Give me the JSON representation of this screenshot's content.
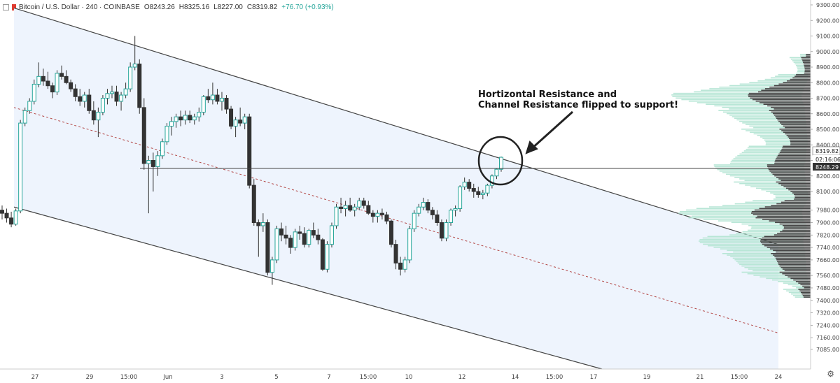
{
  "header": {
    "symbol": "Bitcoin / U.S. Dollar · 240 · COINBASE",
    "open": "O8243.26",
    "high": "H8325.16",
    "low": "L8227.00",
    "close": "C8319.82",
    "change": "+76.70 (+0.93%)"
  },
  "annotation": {
    "line1": "Hortizontal Resistance and",
    "line2": "Channel Resistance flipped to support!"
  },
  "price_labels": {
    "last": "8319.82",
    "countdown": "02:16:06",
    "level": "8248.29"
  },
  "colors": {
    "up": "#26a69a",
    "down": "#333333",
    "channel_fill": "#eef4fd",
    "midline": "#b34747",
    "volume_profile_bright": "#b8e6d6",
    "volume_profile_dark": "#444444"
  },
  "chart_data": {
    "type": "candlestick",
    "title": "",
    "y_ticks": [
      9300,
      9200,
      9100,
      9000,
      8900,
      8800,
      8700,
      8600,
      8500,
      8400,
      8300,
      8200,
      8100,
      7980,
      7900,
      7820,
      7740,
      7660,
      7560,
      7480,
      7400,
      7320,
      7240,
      7160,
      7085
    ],
    "x_ticks": [
      "27",
      "29",
      "15:00",
      "Jun",
      "3",
      "5",
      "7",
      "15:00",
      "10",
      "12",
      "14",
      "15:00",
      "17",
      "19",
      "21",
      "15:00",
      "24"
    ],
    "candles": [
      [
        7980,
        8010,
        7920,
        7960
      ],
      [
        7960,
        7990,
        7900,
        7930
      ],
      [
        7930,
        7970,
        7870,
        7890
      ],
      [
        7890,
        7990,
        7880,
        7975
      ],
      [
        7975,
        8560,
        7960,
        8540
      ],
      [
        8540,
        8640,
        8520,
        8620
      ],
      [
        8620,
        8700,
        8600,
        8680
      ],
      [
        8680,
        8820,
        8660,
        8790
      ],
      [
        8790,
        8930,
        8770,
        8840
      ],
      [
        8840,
        8890,
        8780,
        8810
      ],
      [
        8810,
        8870,
        8760,
        8780
      ],
      [
        8780,
        8800,
        8700,
        8740
      ],
      [
        8740,
        8880,
        8720,
        8860
      ],
      [
        8860,
        8910,
        8820,
        8840
      ],
      [
        8840,
        8880,
        8790,
        8800
      ],
      [
        8800,
        8820,
        8740,
        8760
      ],
      [
        8760,
        8790,
        8680,
        8710
      ],
      [
        8710,
        8760,
        8650,
        8680
      ],
      [
        8680,
        8740,
        8640,
        8720
      ],
      [
        8720,
        8760,
        8600,
        8620
      ],
      [
        8620,
        8680,
        8530,
        8560
      ],
      [
        8560,
        8640,
        8450,
        8610
      ],
      [
        8610,
        8720,
        8590,
        8700
      ],
      [
        8700,
        8760,
        8660,
        8730
      ],
      [
        8730,
        8780,
        8700,
        8740
      ],
      [
        8740,
        8780,
        8650,
        8680
      ],
      [
        8680,
        8740,
        8620,
        8720
      ],
      [
        8720,
        8800,
        8700,
        8760
      ],
      [
        8760,
        8930,
        8740,
        8900
      ],
      [
        8900,
        9100,
        8880,
        8920
      ],
      [
        8920,
        8950,
        8600,
        8640
      ],
      [
        8640,
        8700,
        8240,
        8280
      ],
      [
        8280,
        8330,
        7960,
        8300
      ],
      [
        8300,
        8350,
        8100,
        8260
      ],
      [
        8260,
        8360,
        8200,
        8330
      ],
      [
        8330,
        8440,
        8310,
        8420
      ],
      [
        8420,
        8540,
        8400,
        8520
      ],
      [
        8520,
        8580,
        8460,
        8550
      ],
      [
        8550,
        8600,
        8510,
        8580
      ],
      [
        8580,
        8620,
        8520,
        8560
      ],
      [
        8560,
        8620,
        8530,
        8590
      ],
      [
        8590,
        8620,
        8540,
        8560
      ],
      [
        8560,
        8600,
        8530,
        8580
      ],
      [
        8580,
        8640,
        8550,
        8610
      ],
      [
        8610,
        8720,
        8590,
        8710
      ],
      [
        8710,
        8760,
        8670,
        8690
      ],
      [
        8690,
        8800,
        8660,
        8720
      ],
      [
        8720,
        8760,
        8660,
        8680
      ],
      [
        8680,
        8740,
        8620,
        8700
      ],
      [
        8700,
        8720,
        8600,
        8630
      ],
      [
        8630,
        8650,
        8500,
        8520
      ],
      [
        8520,
        8580,
        8450,
        8560
      ],
      [
        8560,
        8640,
        8520,
        8540
      ],
      [
        8540,
        8600,
        8500,
        8580
      ],
      [
        8580,
        8600,
        8120,
        8140
      ],
      [
        8140,
        8180,
        7880,
        7900
      ],
      [
        7900,
        7920,
        7680,
        7880
      ],
      [
        7880,
        7960,
        7840,
        7900
      ],
      [
        7900,
        7920,
        7560,
        7580
      ],
      [
        7580,
        7680,
        7500,
        7660
      ],
      [
        7660,
        7880,
        7640,
        7860
      ],
      [
        7860,
        7900,
        7780,
        7820
      ],
      [
        7820,
        7880,
        7760,
        7800
      ],
      [
        7800,
        7820,
        7700,
        7740
      ],
      [
        7740,
        7860,
        7720,
        7840
      ],
      [
        7840,
        7880,
        7790,
        7830
      ],
      [
        7830,
        7870,
        7740,
        7760
      ],
      [
        7760,
        7860,
        7740,
        7850
      ],
      [
        7850,
        7900,
        7800,
        7820
      ],
      [
        7820,
        7860,
        7760,
        7790
      ],
      [
        7790,
        7800,
        7590,
        7600
      ],
      [
        7600,
        7780,
        7580,
        7760
      ],
      [
        7760,
        7900,
        7740,
        7880
      ],
      [
        7880,
        8020,
        7860,
        8000
      ],
      [
        8000,
        8060,
        7960,
        7990
      ],
      [
        7990,
        8040,
        7940,
        8010
      ],
      [
        8010,
        8060,
        7970,
        7980
      ],
      [
        7980,
        8020,
        7940,
        8000
      ],
      [
        8000,
        8060,
        7980,
        8040
      ],
      [
        8040,
        8060,
        7990,
        8010
      ],
      [
        8010,
        8040,
        7950,
        7960
      ],
      [
        7960,
        7980,
        7900,
        7940
      ],
      [
        7940,
        7980,
        7900,
        7960
      ],
      [
        7960,
        7990,
        7920,
        7950
      ],
      [
        7950,
        7970,
        7890,
        7910
      ],
      [
        7910,
        7920,
        7740,
        7760
      ],
      [
        7760,
        7790,
        7600,
        7640
      ],
      [
        7640,
        7680,
        7560,
        7600
      ],
      [
        7600,
        7680,
        7580,
        7660
      ],
      [
        7660,
        7880,
        7640,
        7860
      ],
      [
        7860,
        7980,
        7840,
        7960
      ],
      [
        7960,
        8020,
        7940,
        8000
      ],
      [
        8000,
        8060,
        7980,
        8030
      ],
      [
        8030,
        8050,
        7960,
        7980
      ],
      [
        7980,
        8000,
        7920,
        7950
      ],
      [
        7950,
        7980,
        7880,
        7900
      ],
      [
        7900,
        7920,
        7780,
        7800
      ],
      [
        7800,
        7920,
        7780,
        7900
      ],
      [
        7900,
        7990,
        7880,
        7980
      ],
      [
        7980,
        8010,
        7940,
        7990
      ],
      [
        7990,
        8140,
        7970,
        8130
      ],
      [
        8130,
        8190,
        8110,
        8160
      ],
      [
        8160,
        8180,
        8100,
        8120
      ],
      [
        8120,
        8150,
        8060,
        8100
      ],
      [
        8100,
        8130,
        8060,
        8080
      ],
      [
        8080,
        8110,
        8050,
        8090
      ],
      [
        8090,
        8150,
        8070,
        8140
      ],
      [
        8140,
        8210,
        8120,
        8200
      ],
      [
        8200,
        8250,
        8180,
        8243
      ],
      [
        8243,
        8325,
        8227,
        8320
      ]
    ],
    "channel": {
      "upper_start": 9280,
      "upper_end": 7760,
      "lower_start": 8000,
      "lower_end": 6500,
      "mid_start": 8640,
      "mid_end": 7190
    },
    "horizontal_level": 8248.29,
    "volume_profile": "distribution 7400-9000, bright segment plus dark POC segment"
  }
}
